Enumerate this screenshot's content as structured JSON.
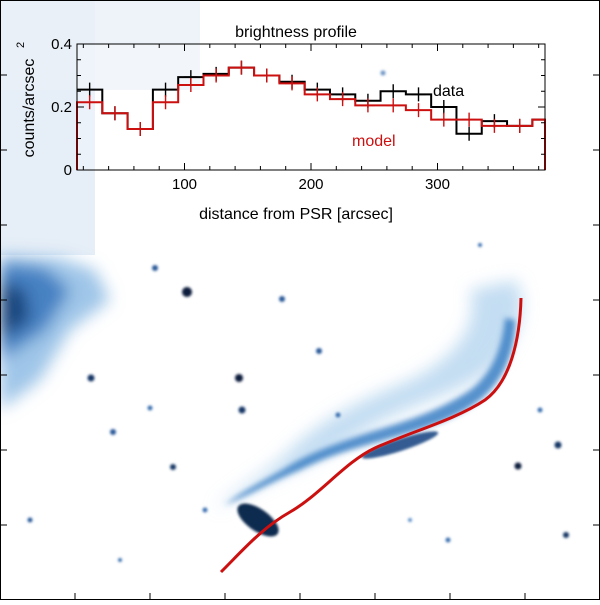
{
  "chart_data": {
    "type": "line",
    "title": "brightness  profile",
    "xlabel": "distance from PSR [arcsec]",
    "ylabel": "counts/arcsec",
    "ylabel_superscript": "2",
    "xlim": [
      15,
      385
    ],
    "ylim": [
      0,
      0.4
    ],
    "xticks": [
      100,
      200,
      300
    ],
    "yticks": [
      0,
      0.2,
      0.4
    ],
    "ytick_labels": [
      "0",
      "0.2",
      "0.4"
    ],
    "grid": false,
    "legend_position": "right",
    "bin_edges": [
      15,
      35,
      55,
      75,
      95,
      115,
      135,
      155,
      175,
      195,
      215,
      235,
      255,
      275,
      295,
      315,
      335,
      355,
      375,
      385
    ],
    "series": [
      {
        "name": "data",
        "color": "#000000",
        "step": true,
        "x": [
          25,
          45,
          65,
          85,
          105,
          125,
          145,
          165,
          185,
          205,
          225,
          245,
          265,
          285,
          305,
          325,
          345,
          365,
          380
        ],
        "y": [
          0.255,
          0.18,
          0.13,
          0.255,
          0.295,
          0.305,
          0.325,
          0.3,
          0.28,
          0.255,
          0.24,
          0.22,
          0.25,
          0.24,
          0.2,
          0.115,
          0.155,
          0.14,
          0.16
        ]
      },
      {
        "name": "model",
        "color": "#cc1010",
        "step": true,
        "x": [
          25,
          45,
          65,
          85,
          105,
          125,
          145,
          165,
          185,
          205,
          225,
          245,
          265,
          285,
          305,
          325,
          345,
          365,
          380
        ],
        "y": [
          0.215,
          0.18,
          0.13,
          0.215,
          0.27,
          0.3,
          0.325,
          0.3,
          0.275,
          0.24,
          0.225,
          0.205,
          0.205,
          0.19,
          0.16,
          0.16,
          0.14,
          0.14,
          0.16
        ]
      }
    ]
  },
  "image": {
    "description_colors": {
      "background": "#ffffff",
      "emission_light": "#bcd7ee",
      "emission_mid": "#5ea0d8",
      "emission_dark": "#10305a",
      "spine_line": "#cc1010"
    }
  }
}
